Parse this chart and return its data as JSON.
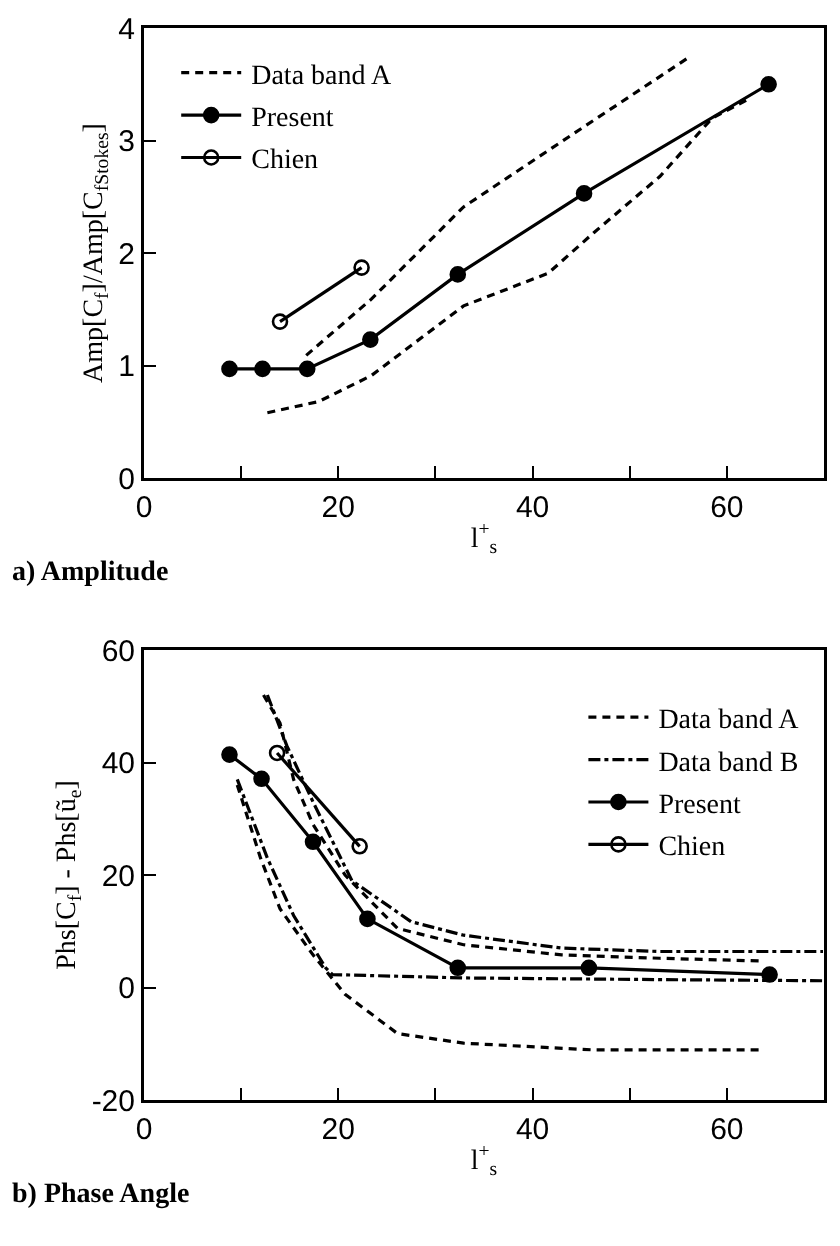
{
  "chart_data": [
    {
      "type": "line",
      "title": "a) Amplitude",
      "xlabel": "l$^{+}$$_{s}$",
      "ylabel": "Amp[C$_{f}$]/Amp[C$_{fStokes}$]",
      "xlim": [
        0,
        70
      ],
      "xticks": [
        0,
        {
          "value": 10,
          "label": null
        },
        20,
        {
          "value": 30,
          "label": null
        },
        40,
        {
          "value": 50,
          "label": null
        },
        60,
        {
          "value": 70,
          "label": null
        }
      ],
      "ylim": [
        0,
        4
      ],
      "yticks": [
        0,
        1,
        2,
        3,
        4
      ],
      "grid": false,
      "legend": "top left",
      "series": [
        {
          "name": "Data band A",
          "color": "#000000",
          "line_style": "dashed",
          "marker": "none",
          "x": [
            16.7,
            23.4,
            32.9,
            46.3,
            56.1
          ],
          "values": [
            1.09,
            1.59,
            2.41,
            3.18,
            3.74
          ]
        },
        {
          "color": "#000000",
          "line_style": "dashed",
          "marker": "none",
          "x": [
            12.7,
            18,
            23.4,
            32.9,
            41.6,
            46.3,
            53.1,
            58.5,
            62.5
          ],
          "values": [
            0.58,
            0.68,
            0.91,
            1.53,
            1.82,
            2.18,
            2.68,
            3.2,
            3.38
          ]
        },
        {
          "name": "Present",
          "color": "#000000",
          "line_style": "solid",
          "marker": "circle",
          "x": [
            8.8,
            12.2,
            16.8,
            23.3,
            32.3,
            45.3,
            64.3
          ],
          "values": [
            0.97,
            0.97,
            0.97,
            1.23,
            1.81,
            2.53,
            3.5
          ]
        },
        {
          "name": "Chien",
          "color": "#000000",
          "line_style": "solid",
          "marker": "circle-open",
          "x": [
            14,
            22.4
          ],
          "values": [
            1.39,
            1.87
          ]
        }
      ]
    },
    {
      "type": "line",
      "title": "b) Phase Angle",
      "xlabel": "l$^{+}$$_{s}$",
      "ylabel": "Phs[C$_{f}$] - Phs[ũ$_{e}$]",
      "xlim": [
        0,
        70
      ],
      "xticks": [
        0,
        {
          "value": 10,
          "label": null
        },
        20,
        {
          "value": 30,
          "label": null
        },
        40,
        {
          "value": 50,
          "label": null
        },
        60,
        {
          "value": 70,
          "label": null
        }
      ],
      "ylim": [
        -20,
        60
      ],
      "yticks": [
        -20,
        0,
        20,
        40,
        60
      ],
      "grid": false,
      "legend": "top right",
      "series": [
        {
          "name": "Data band A",
          "color": "#000000",
          "line_style": "dashed",
          "marker": "none",
          "x": [
            12.3,
            14,
            15.4,
            17.4,
            20.7,
            26.1,
            32.9,
            43,
            53.1,
            63.8
          ],
          "values": [
            52,
            47,
            37,
            29,
            20,
            10.5,
            7.6,
            5.8,
            5.2,
            4.7
          ]
        },
        {
          "color": "#000000",
          "line_style": "dashed",
          "marker": "none",
          "x": [
            9.6,
            12,
            14,
            17.4,
            20.7,
            26.1,
            32.9,
            46.3,
            63.8
          ],
          "values": [
            36,
            23,
            14,
            5.8,
            -1.2,
            -8.2,
            -9.9,
            -11.1,
            -11.1
          ]
        },
        {
          "name": "Data band B",
          "color": "#000000",
          "line_style": "dashdot",
          "marker": "none",
          "x": [
            12.7,
            14.7,
            17.4,
            21.4,
            27.5,
            32.9,
            43,
            53.1,
            69.9
          ],
          "values": [
            52,
            43,
            33,
            19,
            11.7,
            9.3,
            7,
            6.4,
            6.4
          ]
        },
        {
          "color": "#000000",
          "line_style": "dashdot",
          "marker": "none",
          "x": [
            9.6,
            12.7,
            15.4,
            18.7,
            19.4,
            32.9,
            53.1,
            69.9
          ],
          "values": [
            37,
            23,
            12.8,
            3.5,
            2.3,
            1.7,
            1.4,
            1.2
          ]
        },
        {
          "name": "Present",
          "color": "#000000",
          "line_style": "solid",
          "marker": "circle",
          "x": [
            8.8,
            12.1,
            17.4,
            23,
            32.3,
            45.8,
            64.4
          ],
          "values": [
            41.4,
            37.1,
            25.9,
            12.2,
            3.5,
            3.5,
            2.3
          ]
        },
        {
          "name": "Chien",
          "color": "#000000",
          "line_style": "solid",
          "marker": "circle-open",
          "x": [
            13.7,
            22.2
          ],
          "values": [
            41.7,
            25.1
          ]
        }
      ]
    }
  ]
}
